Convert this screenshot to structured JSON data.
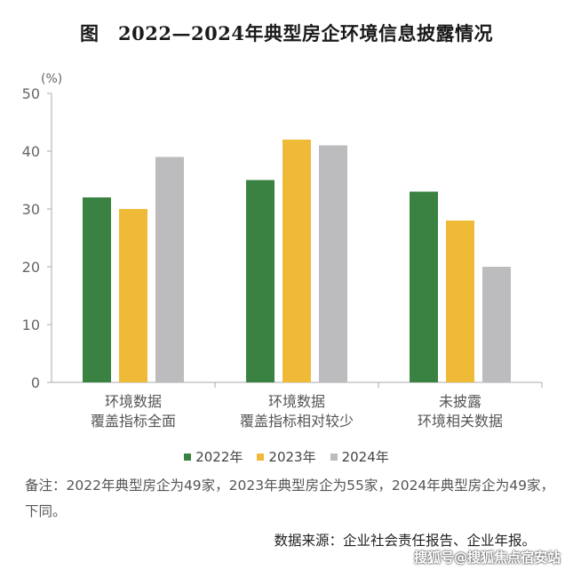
{
  "title": "图　2022—2024年典型房企环境信息披露情况",
  "chart_data": {
    "type": "bar",
    "yunit": "(%)",
    "ylim": [
      0,
      50
    ],
    "yticks": [
      0,
      10,
      20,
      30,
      40,
      50
    ],
    "categories": [
      [
        "环境数据",
        "覆盖指标全面"
      ],
      [
        "环境数据",
        "覆盖指标相对较少"
      ],
      [
        "未披露",
        "环境相关数据"
      ]
    ],
    "series": [
      {
        "name": "2022年",
        "color": "#3a8242",
        "values": [
          32,
          35,
          33
        ]
      },
      {
        "name": "2023年",
        "color": "#f0ba39",
        "values": [
          30,
          42,
          28
        ]
      },
      {
        "name": "2024年",
        "color": "#bcbcbe",
        "values": [
          39,
          41,
          20
        ]
      }
    ],
    "grid": false,
    "legend_position": "bottom"
  },
  "note": "备注：2022年典型房企为49家，2023年典型房企为55家，2024年典型房企为49家，下同。",
  "source": "数据来源：企业社会责任报告、企业年报。",
  "watermark": "搜狐号@搜狐焦点宿安站"
}
